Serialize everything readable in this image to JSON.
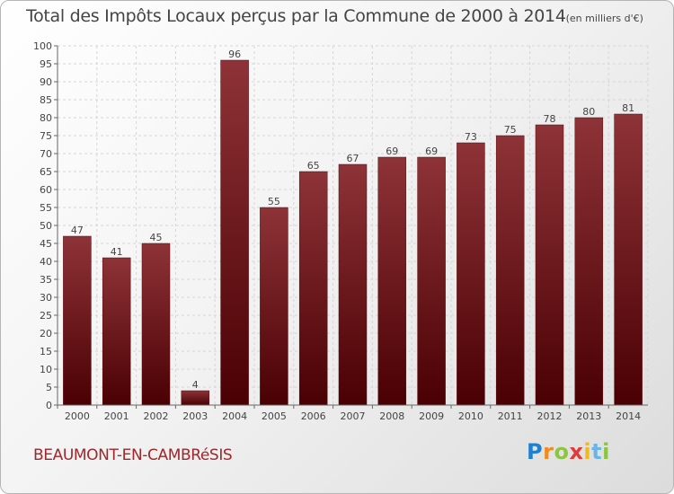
{
  "chart_data": {
    "type": "bar",
    "title": "Total des Impôts Locaux perçus par la Commune de 2000 à 2014",
    "unit": "(en milliers d'€)",
    "categories": [
      "2000",
      "2001",
      "2002",
      "2003",
      "2004",
      "2005",
      "2006",
      "2007",
      "2008",
      "2009",
      "2010",
      "2011",
      "2012",
      "2013",
      "2014"
    ],
    "values": [
      47,
      41,
      45,
      4,
      96,
      55,
      65,
      67,
      69,
      69,
      73,
      75,
      78,
      80,
      81
    ],
    "yticks": [
      0,
      5,
      10,
      15,
      20,
      25,
      30,
      35,
      40,
      45,
      50,
      55,
      60,
      65,
      70,
      75,
      80,
      85,
      90,
      95,
      100
    ],
    "ylim": [
      0,
      100
    ],
    "xlabel": "",
    "ylabel": "",
    "grid": true,
    "bar_color": "#7a1e24",
    "bar_gradient_top": "#8e3338",
    "bar_gradient_bottom": "#4a0003"
  },
  "footer": {
    "commune": "BEAUMONT-EN-CAMBRéSIS",
    "logo": {
      "p": "P",
      "r": "r",
      "o": "o",
      "x": "x",
      "i1": "i",
      "t": "t",
      "i2": "i"
    }
  }
}
